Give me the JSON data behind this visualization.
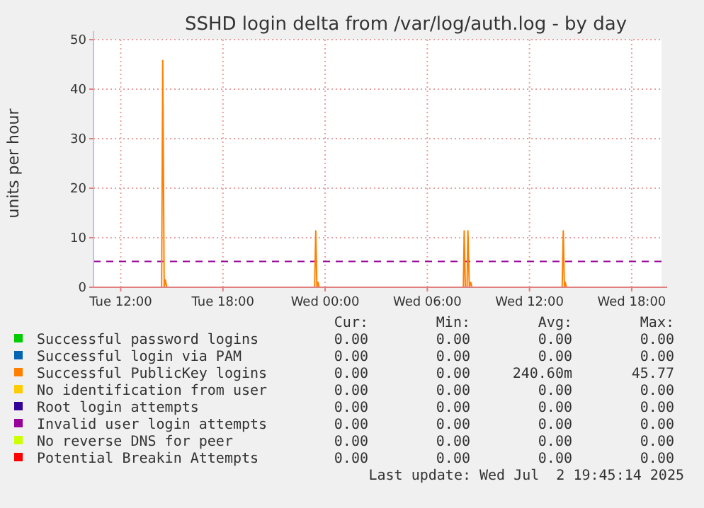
{
  "chart_data": {
    "type": "line",
    "title": "SSHD login delta from /var/log/auth.log - by day",
    "ylabel": "units per hour",
    "xlim": [
      "2025-07-01T10:24",
      "2025-07-02T19:45"
    ],
    "xticks": [
      {
        "value": "2025-07-01T12:00",
        "label": "Tue 12:00"
      },
      {
        "value": "2025-07-01T18:00",
        "label": "Tue 18:00"
      },
      {
        "value": "2025-07-02T00:00",
        "label": "Wed 00:00"
      },
      {
        "value": "2025-07-02T06:00",
        "label": "Wed 06:00"
      },
      {
        "value": "2025-07-02T12:00",
        "label": "Wed 12:00"
      },
      {
        "value": "2025-07-02T18:00",
        "label": "Wed 18:00"
      }
    ],
    "ylim": [
      0,
      50
    ],
    "yticks": [
      0,
      10,
      20,
      30,
      40,
      50
    ],
    "grid": true,
    "legend": "bottom",
    "ref_lines": [
      {
        "axis": "y",
        "value": 5.2,
        "color": "#990099",
        "line_style": "dashed"
      }
    ],
    "series": [
      {
        "name": "Successful password logins",
        "color": "#00cc00"
      },
      {
        "name": "Successful login via PAM",
        "color": "#0066b3"
      },
      {
        "name": "Successful PublicKey logins",
        "color": "#ff8000",
        "x": [
          "2025-07-01T10:24",
          "2025-07-01T14:24",
          "2025-07-01T14:28",
          "2025-07-01T14:33",
          "2025-07-01T14:37",
          "2025-07-01T14:42",
          "2025-07-01T23:23",
          "2025-07-01T23:27",
          "2025-07-01T23:31",
          "2025-07-01T23:35",
          "2025-07-01T23:39",
          "2025-07-02T08:07",
          "2025-07-02T08:10",
          "2025-07-02T08:14",
          "2025-07-02T08:20",
          "2025-07-02T08:23",
          "2025-07-02T08:28",
          "2025-07-02T08:33",
          "2025-07-02T08:37",
          "2025-07-02T13:55",
          "2025-07-02T13:59",
          "2025-07-02T14:03",
          "2025-07-02T14:06",
          "2025-07-02T14:10",
          "2025-07-02T19:45"
        ],
        "values": [
          0,
          0,
          45.77,
          0,
          1.5,
          0,
          0,
          11.4,
          0,
          1,
          0,
          0,
          11.4,
          0,
          0,
          11.4,
          0,
          1,
          0,
          0,
          11.4,
          0,
          1,
          0,
          0
        ]
      },
      {
        "name": "No identification from user",
        "color": "#ffcc00"
      },
      {
        "name": "Root login attempts",
        "color": "#330099"
      },
      {
        "name": "Invalid user login attempts",
        "color": "#990099"
      },
      {
        "name": "No reverse DNS for peer",
        "color": "#ccff00"
      },
      {
        "name": "Potential Breakin Attempts",
        "color": "#ff0000"
      }
    ],
    "annotations": [
      "Cur:",
      "Min:",
      "Avg:",
      "Max:",
      "0.00",
      "0.00",
      "0.00",
      "0.00",
      "0.00",
      "0.00",
      "0.00",
      "0.00",
      "0.00",
      "0.00",
      "240.60m",
      "45.77",
      "0.00",
      "0.00",
      "0.00",
      "0.00",
      "0.00",
      "0.00",
      "0.00",
      "0.00",
      "0.00",
      "0.00",
      "0.00",
      "0.00",
      "0.00",
      "0.00",
      "0.00",
      "0.00",
      "0.00",
      "0.00",
      "0.00",
      "0.00",
      "Last update: Wed Jul  2 19:45:14 2025"
    ]
  }
}
